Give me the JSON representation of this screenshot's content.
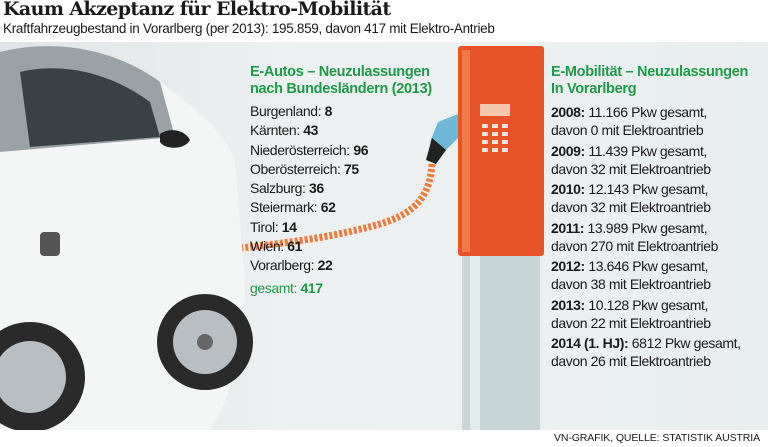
{
  "title": "Kaum Akzeptanz für Elektro-Mobilität",
  "subtitle": "Kraftfahrzeugbestand in Vorarlberg (per 2013): 195.859, davon 417 mit Elektro-Antrieb",
  "left_panel": {
    "heading_line1": "E-Autos – Neuzulassungen",
    "heading_line2": "nach Bundesländern (2013)",
    "items": [
      {
        "label": "Burgenland:",
        "value": "8"
      },
      {
        "label": "Kärnten:",
        "value": "43"
      },
      {
        "label": "Niederösterreich:",
        "value": "96"
      },
      {
        "label": "Oberösterreich:",
        "value": "75"
      },
      {
        "label": "Salzburg:",
        "value": "36"
      },
      {
        "label": "Steiermark:",
        "value": "62"
      },
      {
        "label": "Tirol:",
        "value": "14"
      },
      {
        "label": "Wien:",
        "value": "61"
      },
      {
        "label": "Vorarlberg:",
        "value": "22"
      }
    ],
    "total_label": "gesamt:",
    "total_value": "417"
  },
  "right_panel": {
    "heading_line1": "E-Mobilität – Neuzulassungen",
    "heading_line2": "In Vorarlberg",
    "years": [
      {
        "year": "2008:",
        "line1": "11.166 Pkw gesamt,",
        "line2": "davon 0 mit Elektroantrieb"
      },
      {
        "year": "2009:",
        "line1": "11.439 Pkw gesamt,",
        "line2": "davon 32 mit Elektroantrieb"
      },
      {
        "year": "2010:",
        "line1": "12.143 Pkw gesamt,",
        "line2": "davon 32 mit Elektroantrieb"
      },
      {
        "year": "2011:",
        "line1": "13.989 Pkw gesamt,",
        "line2": "davon 270 mit Elektroantrieb"
      },
      {
        "year": "2012:",
        "line1": "13.646 Pkw gesamt,",
        "line2": "davon 38 mit Elektroantrieb"
      },
      {
        "year": "2013:",
        "line1": "10.128 Pkw gesamt,",
        "line2": "davon 22 mit Elektroantrieb"
      },
      {
        "year": "2014 (1. HJ):",
        "line1": "6812 Pkw gesamt,",
        "line2": "davon 26 mit Elektroantrieb"
      }
    ]
  },
  "source": "VN-GRAFIK, QUELLE: STATISTIK AUSTRIA",
  "colors": {
    "heading_green": "#1f9a4a",
    "station_orange": "#e8542a",
    "cable_orange": "#f07a3a"
  }
}
